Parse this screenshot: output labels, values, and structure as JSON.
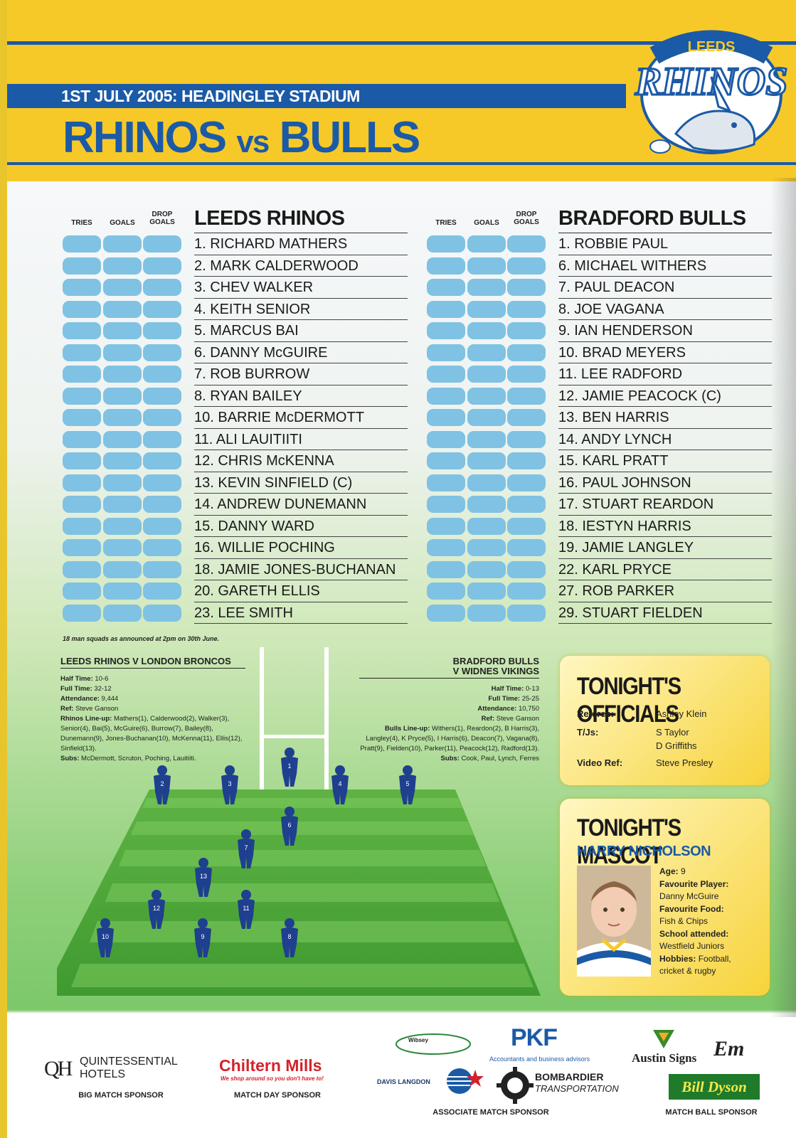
{
  "header": {
    "subtitle": "1ST JULY 2005: HEADINGLEY STADIUM",
    "title_a": "RHINOS",
    "title_vs": "vs",
    "title_b": "BULLS",
    "logo_top": "LEEDS",
    "logo_main": "RHINOS"
  },
  "score_columns": {
    "tries": "TRIES",
    "goals": "GOALS",
    "drop": "DROP",
    "drop2": "GOALS"
  },
  "home": {
    "name": "LEEDS RHINOS",
    "players": [
      "1. RICHARD MATHERS",
      "2. MARK CALDERWOOD",
      "3. CHEV WALKER",
      "4. KEITH SENIOR",
      "5. MARCUS BAI",
      "6. DANNY McGUIRE",
      "7. ROB BURROW",
      "8. RYAN BAILEY",
      "10. BARRIE McDERMOTT",
      "11. ALI LAUITIITI",
      "12. CHRIS McKENNA",
      "13. KEVIN SINFIELD (C)",
      "14. ANDREW DUNEMANN",
      "15. DANNY WARD",
      "16. WILLIE POCHING",
      "18. JAMIE JONES-BUCHANAN",
      "20. GARETH ELLIS",
      "23. LEE SMITH"
    ]
  },
  "away": {
    "name": "BRADFORD BULLS",
    "players": [
      "1. ROBBIE PAUL",
      "6. MICHAEL WITHERS",
      "7. PAUL DEACON",
      "8. JOE VAGANA",
      "9. IAN HENDERSON",
      "10. BRAD MEYERS",
      "11. LEE RADFORD",
      "12. JAMIE PEACOCK (C)",
      "13. BEN HARRIS",
      "14. ANDY LYNCH",
      "15. KARL PRATT",
      "16. PAUL JOHNSON",
      "17. STUART REARDON",
      "18. IESTYN HARRIS",
      "19. JAMIE LANGLEY",
      "22. KARL PRYCE",
      "27. ROB PARKER",
      "29. STUART FIELDEN"
    ]
  },
  "squad_note": "18 man squads as announced at 2pm on 30th June.",
  "rhinos_result": {
    "heading": "LEEDS RHINOS V LONDON BRONCOS",
    "half_time_label": "Half Time:",
    "half_time": "10-6",
    "full_time_label": "Full Time:",
    "full_time": "32-12",
    "attendance_label": "Attendance:",
    "attendance": "9,444",
    "ref_label": "Ref:",
    "ref": "Steve Ganson",
    "lineup_label": "Rhinos Line-up:",
    "lineup": "Mathers(1), Calderwood(2), Walker(3), Senior(4), Bai(5), McGuire(6), Burrow(7), Bailey(8), Dunemann(9), Jones-Buchanan(10), McKenna(11), Ellis(12), Sinfield(13).",
    "subs_label": "Subs:",
    "subs": "McDermott, Scruton, Poching, Lauitiiti."
  },
  "bulls_result": {
    "heading_1": "BRADFORD BULLS",
    "heading_2": "V WIDNES VIKINGS",
    "half_time_label": "Half Time:",
    "half_time": "0-13",
    "full_time_label": "Full Time:",
    "full_time": "25-25",
    "attendance_label": "Attendance:",
    "attendance": "10,750",
    "ref_label": "Ref:",
    "ref": "Steve Ganson",
    "lineup_label": "Bulls Line-up:",
    "lineup": "Withers(1), Reardon(2), B Harris(3), Langley(4), K Pryce(5), I Harris(6), Deacon(7), Vagana(8), Pratt(9), Fielden(10), Parker(11), Peacock(12), Radford(13).",
    "subs_label": "Subs:",
    "subs": "Cook, Paul, Lynch, Ferres"
  },
  "pitch_numbers": [
    "1",
    "2",
    "3",
    "4",
    "5",
    "6",
    "7",
    "13",
    "12",
    "11",
    "10",
    "9",
    "8"
  ],
  "officials": {
    "title": "TONIGHT'S OFFICIALS",
    "referee_label": "Referee:",
    "referee": "Ashley Klein",
    "tjs_label": "T/Js:",
    "tj1": "S Taylor",
    "tj2": "D Griffiths",
    "video_label": "Video Ref:",
    "video": "Steve Presley"
  },
  "mascot": {
    "title": "TONIGHT'S MASCOT",
    "name": "HARRY NICHOLSON",
    "age_label": "Age:",
    "age": "9",
    "player_label": "Favourite Player:",
    "player": "Danny McGuire",
    "food_label": "Favourite Food:",
    "food": "Fish & Chips",
    "school_label": "School attended:",
    "school": "Westfield Juniors",
    "hobbies_label": "Hobbies:",
    "hobbies_1": "Football,",
    "hobbies_2": "cricket & rugby"
  },
  "sponsors": {
    "quintessential_1": "QUINTESSENTIAL",
    "quintessential_2": "HOTELS",
    "big_match": "BIG MATCH SPONSOR",
    "chiltern": "Chiltern Mills",
    "chiltern_tag": "We shop around so you don't have to!",
    "match_day": "MATCH DAY SPONSOR",
    "wibsey": "Wibsey",
    "pkf": "PKF",
    "pkf_tag": "Accountants and business advisors",
    "davis": "DAVIS LANGDON",
    "bombardier_1": "BOMBARDIER",
    "bombardier_2": "TRANSPORTATION",
    "associate": "ASSOCIATE MATCH SPONSOR",
    "austin": "Austin Signs",
    "em": "Em",
    "billdyson": "Bill Dyson",
    "match_ball": "MATCH BALL SPONSOR"
  },
  "colors": {
    "blue": "#1b5aa6",
    "yellow": "#f7c928",
    "box": "#7fc2e3"
  }
}
